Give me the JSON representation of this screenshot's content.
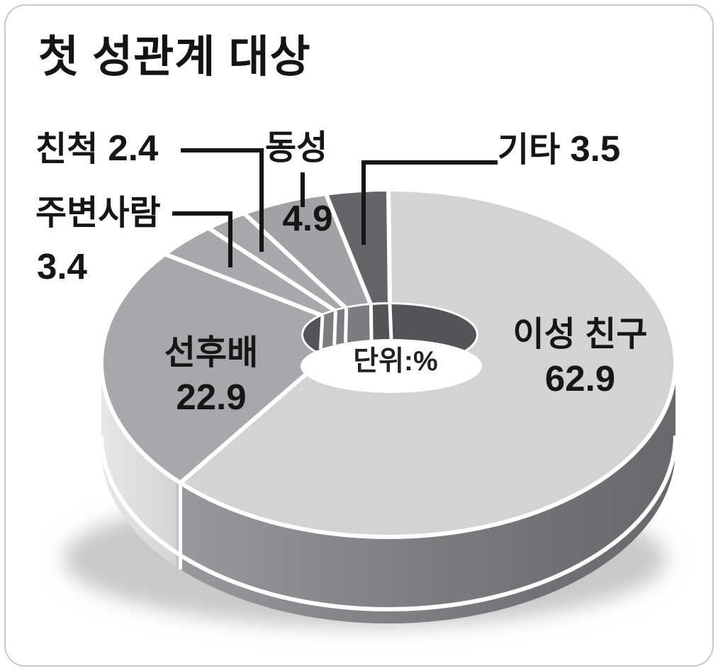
{
  "chart_data": {
    "type": "pie",
    "style": "3d-donut",
    "title": "첫 성관계 대상",
    "unit_label": "단위:%",
    "start": "top",
    "direction": "clockwise",
    "total": 100,
    "legend_position": "none",
    "colors": {
      "text": "#161616",
      "leader_line": "#161616",
      "slice_divider": "#ffffff",
      "inner_wall_dark": "#525457",
      "inner_wall_light": "#7b7d80",
      "frame_border": "#c9c9c9"
    },
    "slices": [
      {
        "label": "이성 친구",
        "value": 62.9,
        "color": "#d2d3d5"
      },
      {
        "label": "선후배",
        "value": 22.9,
        "color": "#a6a8ab"
      },
      {
        "label": "주변사람",
        "value": 3.4,
        "color": "#a6a8ab"
      },
      {
        "label": "친척",
        "value": 2.4,
        "color": "#a6a8ab"
      },
      {
        "label": "동성",
        "value": 4.9,
        "color": "#a0a2a5"
      },
      {
        "label": "기타",
        "value": 3.5,
        "color": "#636568"
      }
    ]
  }
}
